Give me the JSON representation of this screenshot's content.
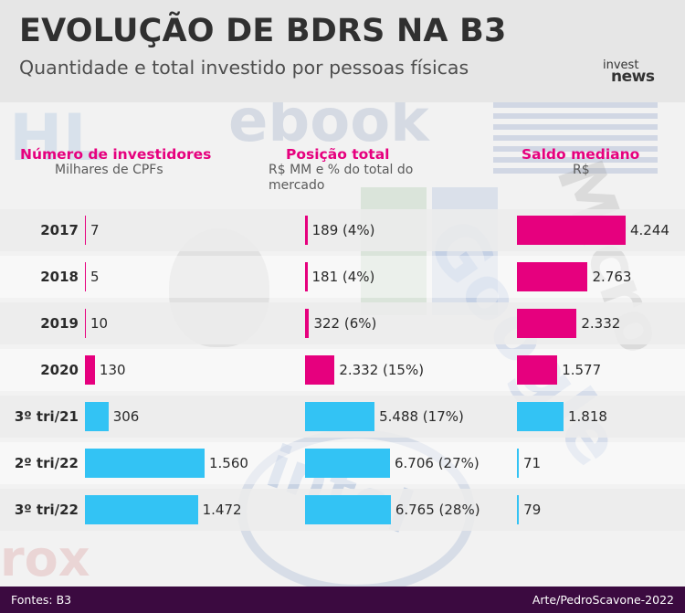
{
  "chart_data": {
    "type": "bar",
    "title": "EVOLUÇÃO DE BDRS NA B3",
    "subtitle": "Quantidade e total investido por pessoas físicas",
    "categories": [
      "2017",
      "2018",
      "2019",
      "2020",
      "3º tri/21",
      "2º tri/22",
      "3º tri/22"
    ],
    "series": [
      {
        "name": "Número de investidores",
        "unit": "Milhares de CPFs",
        "values": [
          7,
          5,
          10,
          130,
          306,
          1560,
          1472
        ],
        "labels": [
          "7",
          "5",
          "10",
          "130",
          "306",
          "1.560",
          "1.472"
        ]
      },
      {
        "name": "Posição total",
        "unit": "R$ MM e % do total do mercado",
        "values": [
          189,
          181,
          322,
          2332,
          5488,
          6706,
          6765
        ],
        "labels": [
          "189 (4%)",
          "181 (4%)",
          "322 (6%)",
          "2.332 (15%)",
          "5.488 (17%)",
          "6.706 (27%)",
          "6.765 (28%)"
        ]
      },
      {
        "name": "Saldo mediano",
        "unit": "R$",
        "values": [
          4244,
          2763,
          2332,
          1577,
          1818,
          71,
          79
        ],
        "labels": [
          "4.244",
          "2.763",
          "2.332",
          "1.577",
          "1.818",
          "71",
          "79"
        ]
      }
    ],
    "bar_colors": [
      "#e6007e",
      "#e6007e",
      "#e6007e",
      "#e6007e",
      "#33c3f4",
      "#33c3f4",
      "#33c3f4"
    ],
    "header_color": "#e6007e",
    "legend": "none",
    "grid": false
  },
  "logo": {
    "line1": "invest",
    "line2": "news"
  },
  "footer": {
    "sources": "Fontes: B3",
    "credit": "Arte/PedroScavone-2022"
  }
}
